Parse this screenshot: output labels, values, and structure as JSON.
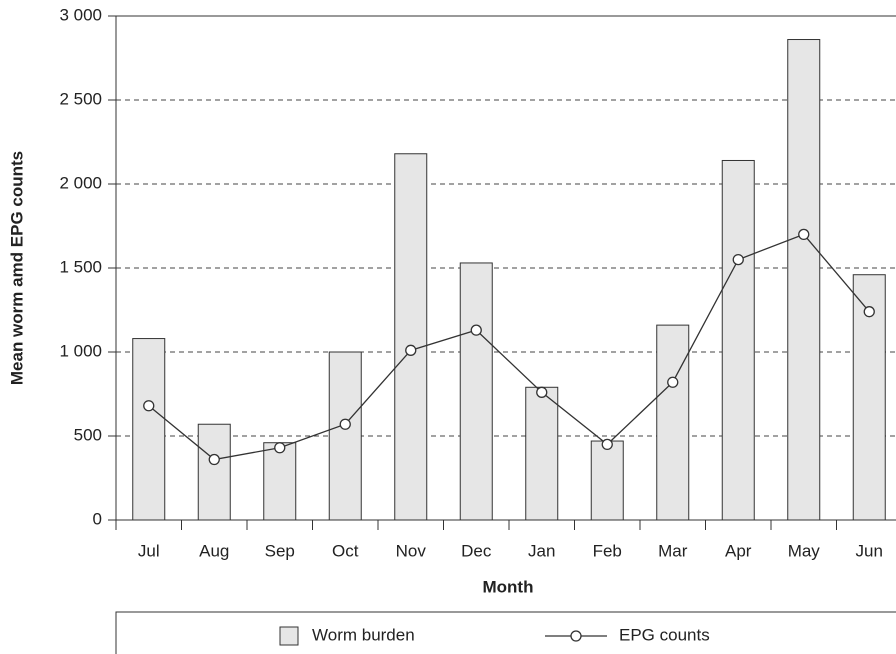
{
  "chart_data": {
    "type": "bar_line",
    "x_label": "Month",
    "y_label": "Mean worm amd EPG counts",
    "categories": [
      "Jul",
      "Aug",
      "Sep",
      "Oct",
      "Nov",
      "Dec",
      "Jan",
      "Feb",
      "Mar",
      "Apr",
      "May",
      "Jun"
    ],
    "series": [
      {
        "name": "Worm burden",
        "type": "bar",
        "color": "#e6e6e6",
        "values": [
          1080,
          570,
          460,
          1000,
          2180,
          1530,
          790,
          470,
          1160,
          2140,
          2860,
          1460
        ]
      },
      {
        "name": "EPG counts",
        "type": "line",
        "color": "#333333",
        "values": [
          680,
          360,
          430,
          570,
          1010,
          1130,
          760,
          450,
          820,
          1550,
          1700,
          1240
        ]
      }
    ],
    "ylim": [
      0,
      3000
    ],
    "yticks": [
      0,
      500,
      {
        "value": 1000,
        "label": "1 000"
      },
      {
        "value": 1500,
        "label": "1 500"
      },
      {
        "value": 2000,
        "label": "2 000"
      },
      {
        "value": 2500,
        "label": "2 500"
      },
      {
        "value": 3000,
        "label": "3 000"
      }
    ],
    "grid": true
  }
}
